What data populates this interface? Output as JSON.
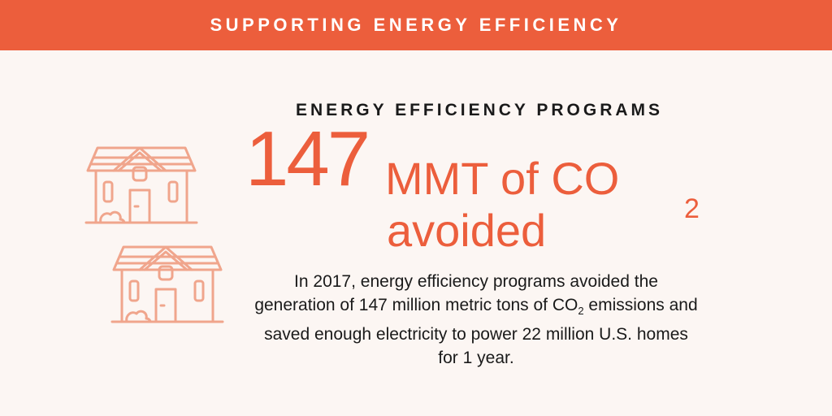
{
  "banner": {
    "title": "SUPPORTING ENERGY EFFICIENCY"
  },
  "headline": {
    "label": "ENERGY EFFICIENCY PROGRAMS",
    "number": "147",
    "unit": "MMT of CO",
    "unit_subscript": "2",
    "unit_line2": "avoided"
  },
  "description": {
    "part1": "In 2017, energy efficiency programs avoided the generation of 147 million metric tons of CO",
    "subscript": "2",
    "part2": " emissions and saved enough electricity to power 22 million U.S. homes for 1 year."
  },
  "icons": {
    "house_1": "house-icon",
    "house_2": "house-icon"
  },
  "colors": {
    "accent": "#ec5e3c",
    "icon": "#f0a58c",
    "background": "#fcf6f3",
    "text": "#1a1a1a"
  }
}
